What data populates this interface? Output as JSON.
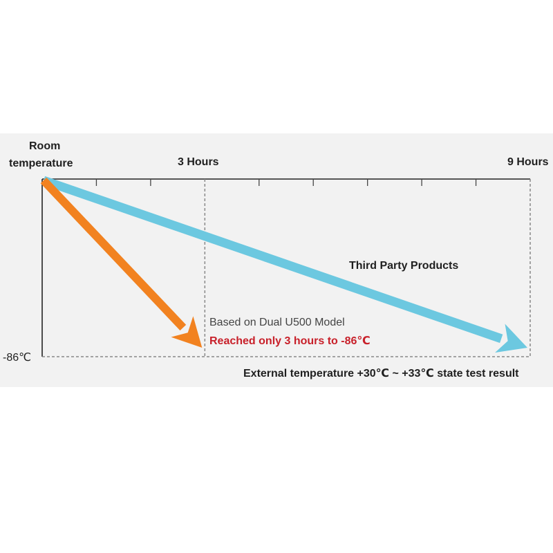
{
  "chart_data": {
    "type": "line",
    "x_labels": {
      "start": [
        "Room",
        "temperature"
      ],
      "mid": "3 Hours",
      "end": "9 Hours"
    },
    "y_label_bottom": "-86℃",
    "xlim": [
      0,
      9
    ],
    "x_minor_ticks": [
      1,
      2,
      4,
      5,
      6,
      7,
      8
    ],
    "series": [
      {
        "name": "Third Party Products",
        "color": "#6cc8e0",
        "points": [
          {
            "x": 0,
            "y": "Room temperature"
          },
          {
            "x": 9,
            "y": "-86℃"
          }
        ]
      },
      {
        "color": "#f28220",
        "points": [
          {
            "x": 0,
            "y": "Room temperature"
          },
          {
            "x": 3,
            "y": "-86℃"
          }
        ]
      }
    ],
    "annotations": {
      "model": "Based on Dual U500 Model",
      "highlight": "Reached only 3 hours to -86℃",
      "highlight_color": "#c8202a",
      "footer": "External temperature +30℃ ~ +33℃ state test result"
    },
    "grid": "dashed"
  }
}
